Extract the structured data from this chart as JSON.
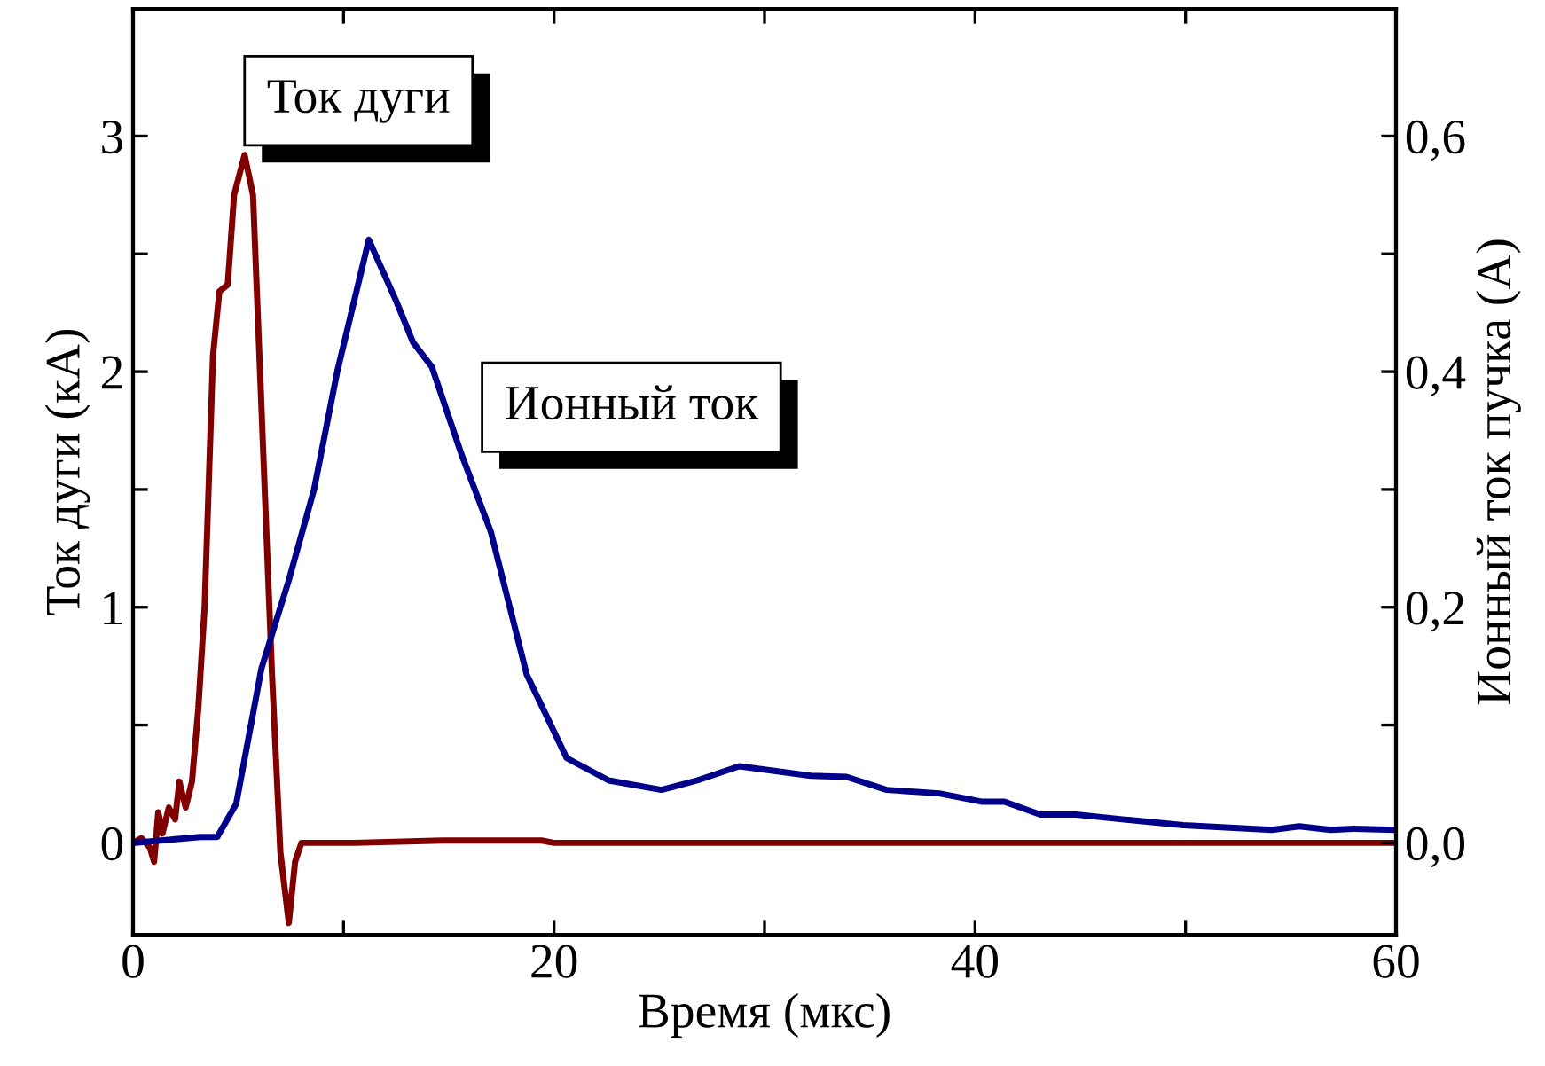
{
  "chart_data": {
    "type": "line",
    "xlabel": "Время (мкс)",
    "ylabel": "Ток дуги (кА)",
    "y2label": "Ионный ток пучка (А)",
    "xlim": [
      0,
      60
    ],
    "ylim": [
      -0.39,
      3.54
    ],
    "y2lim": [
      -0.078,
      0.708
    ],
    "xticks": [
      0,
      {
        "value": 10,
        "label": null
      },
      20,
      {
        "value": 30,
        "label": null
      },
      40,
      {
        "value": 50,
        "label": null
      },
      60
    ],
    "yticks": [
      0,
      {
        "value": 0.5,
        "label": null
      },
      1,
      {
        "value": 1.5,
        "label": null
      },
      2,
      {
        "value": 2.5,
        "label": null
      },
      3
    ],
    "y2ticks": [
      {
        "value": 0,
        "label": "0,0"
      },
      {
        "value": 0.1,
        "label": null
      },
      {
        "value": 0.2,
        "label": "0,2"
      },
      {
        "value": 0.3,
        "label": null
      },
      {
        "value": 0.4,
        "label": "0,4"
      },
      {
        "value": 0.5,
        "label": null
      },
      {
        "value": 0.6,
        "label": "0,6"
      }
    ],
    "grid": false,
    "legend": false,
    "marker": "none",
    "line_style": "solid",
    "series": [
      {
        "name": "Ток дуги",
        "color": "#800000",
        "x": [
          0,
          0.4,
          0.8,
          1.0,
          1.2,
          1.4,
          1.7,
          2.0,
          2.2,
          2.5,
          2.8,
          3.1,
          3.4,
          3.8,
          4.1,
          4.5,
          4.8,
          5.3,
          5.7,
          6.1,
          6.6,
          7.0,
          7.4,
          7.7,
          8.0,
          10.5,
          14.7,
          18.1,
          19.4,
          20,
          60
        ],
        "values": [
          0,
          0.02,
          -0.02,
          -0.08,
          0.13,
          0.04,
          0.15,
          0.1,
          0.26,
          0.15,
          0.26,
          0.57,
          1.0,
          2.07,
          2.34,
          2.37,
          2.75,
          2.92,
          2.75,
          1.85,
          0.72,
          -0.04,
          -0.34,
          -0.08,
          0,
          0,
          0.01,
          0.01,
          0.01,
          0,
          0
        ]
      },
      {
        "name": "Ионный ток",
        "color": "#00008b",
        "axis": "y2",
        "x": [
          0,
          3.2,
          4.0,
          4.9,
          6.1,
          7.4,
          8.6,
          9.7,
          11.2,
          12.5,
          13.3,
          14.2,
          15.6,
          17.0,
          18.7,
          20.6,
          22.6,
          25.1,
          26.8,
          28.8,
          32.2,
          33.9,
          35.8,
          38.3,
          40.3,
          41.4,
          43.1,
          44.8,
          47.0,
          49.9,
          54.1,
          55.4,
          56.9,
          58.0,
          60
        ],
        "values": [
          0,
          0.005,
          0.005,
          0.033,
          0.148,
          0.223,
          0.3,
          0.4,
          0.512,
          0.46,
          0.425,
          0.404,
          0.33,
          0.264,
          0.143,
          0.072,
          0.053,
          0.045,
          0.053,
          0.065,
          0.057,
          0.056,
          0.045,
          0.042,
          0.035,
          0.035,
          0.024,
          0.024,
          0.02,
          0.015,
          0.011,
          0.014,
          0.011,
          0.012,
          0.011
        ]
      }
    ]
  }
}
